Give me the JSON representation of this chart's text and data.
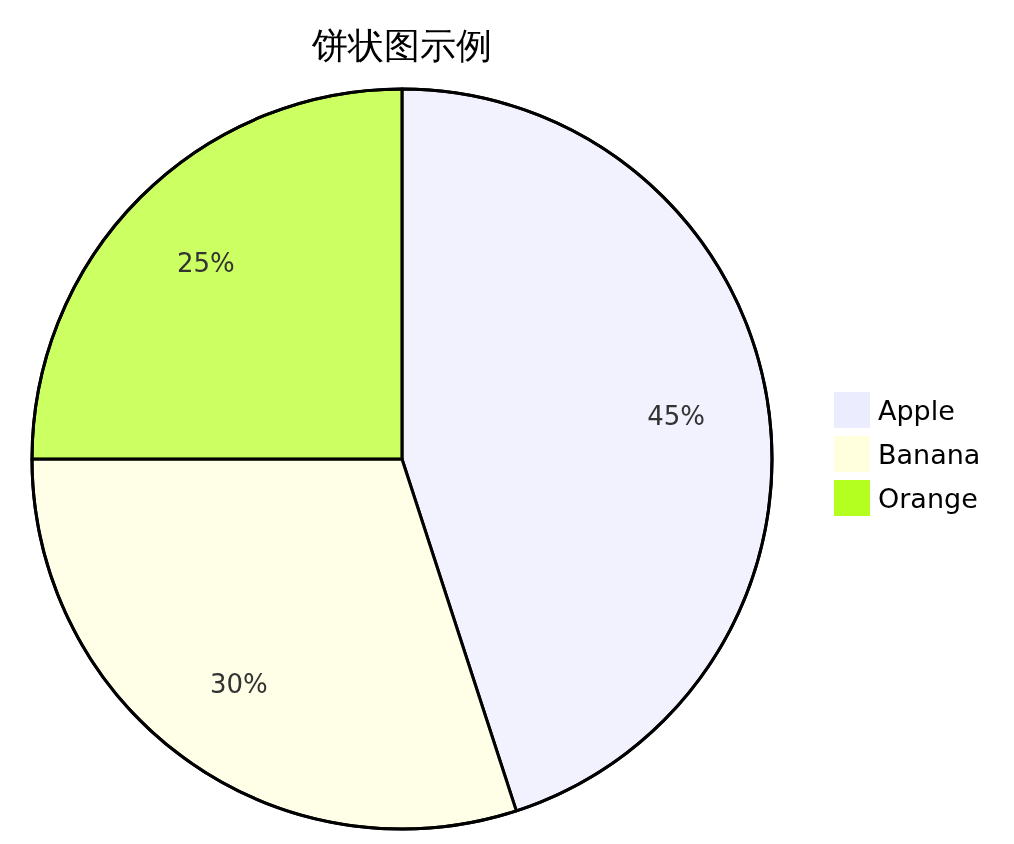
{
  "chart_data": {
    "type": "pie",
    "title": "饼状图示例",
    "categories": [
      "Apple",
      "Banana",
      "Orange"
    ],
    "values": [
      45,
      30,
      25
    ],
    "colors": [
      "#ececff",
      "#ffffde",
      "#b5ff20"
    ],
    "value_labels": [
      "45%",
      "30%",
      "25%"
    ],
    "legend": "right"
  }
}
